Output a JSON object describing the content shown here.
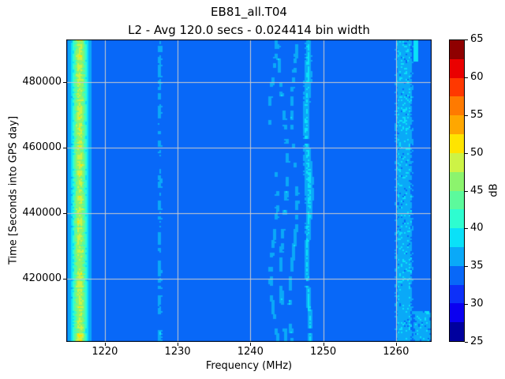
{
  "figure": {
    "title": "EB81_all.T04",
    "subtitle": "L2 - Avg 120.0 secs - 0.024414 bin width"
  },
  "axes": {
    "xlabel": "Frequency (MHz)",
    "ylabel": "Time [Seconds into GPS day]",
    "xticks": [
      1220,
      1230,
      1240,
      1250,
      1260
    ],
    "yticks": [
      420000,
      440000,
      460000,
      480000
    ]
  },
  "colorbar": {
    "label": "dB",
    "ticks": [
      25,
      30,
      35,
      40,
      45,
      50,
      55,
      60,
      65
    ],
    "min": 25,
    "max": 65,
    "n_bands": 16,
    "colors": [
      "#00009e",
      "#0b00f0",
      "#0d30f8",
      "#0868f8",
      "#0aa9f8",
      "#0ae1f8",
      "#2efdd0",
      "#5cfa9c",
      "#8cf46d",
      "#cdf346",
      "#ffe400",
      "#ffa700",
      "#ff7a00",
      "#ff3800",
      "#ea0000",
      "#8f0000"
    ]
  },
  "chart_data": {
    "type": "heatmap",
    "title": "EB81_all.T04",
    "subtitle": "L2 - Avg 120.0 secs - 0.024414 bin width",
    "xlabel": "Frequency (MHz)",
    "ylabel": "Time [Seconds into GPS day]",
    "value_label": "dB",
    "xlim": [
      1214.7,
      1264.9
    ],
    "ylim": [
      400700,
      493000
    ],
    "zlim": [
      25,
      65
    ],
    "z_bin_db": 2.5,
    "grid": true,
    "background_level_db": 33.5,
    "features": [
      {
        "kind": "broadband",
        "name": "strong-broadband-interference",
        "f_center": 1216.55,
        "sigma": 1.0,
        "amp": 14,
        "peak_db": 48,
        "note": "full-height noisy stripe, cyan with green/yellow-green core, hottest at bottom"
      },
      {
        "kind": "narrow",
        "name": "narrowband-1227",
        "f_center": 1227.55,
        "sigma": 0.24,
        "peak_db": 38,
        "note": "intermittent thin stripe, brighter near bottom"
      },
      {
        "kind": "wavy",
        "name": "wavy-streak-1248",
        "f_center": 1247.9,
        "halfwidth": 0.36,
        "amp": 3.4,
        "wobble": 0.18,
        "cycles": 2.2,
        "phase": 0.8,
        "drift": 0.25,
        "duty": 0.97,
        "widen": [
          0.6,
          0.14,
          0.1,
          0.9,
          0.46,
          0.12
        ],
        "peak_db": 38.5
      },
      {
        "kind": "wavy",
        "name": "wavy-streak-1246",
        "f_center": 1246.0,
        "halfwidth": 0.28,
        "amp": 2.7,
        "wobble": 0.45,
        "cycles": 1.6,
        "phase": 2.4,
        "drift": -0.4,
        "duty": 0.6,
        "widen": null,
        "peak_db": 37
      },
      {
        "kind": "wavy",
        "name": "wavy-streak-1244p6",
        "f_center": 1244.6,
        "halfwidth": 0.3,
        "amp": 2.7,
        "wobble": 0.55,
        "cycles": 1.3,
        "phase": 4.6,
        "drift": 0.5,
        "duty": 0.55,
        "widen": null,
        "peak_db": 37
      },
      {
        "kind": "wavy",
        "name": "wavy-streak-1243",
        "f_center": 1243.2,
        "halfwidth": 0.28,
        "amp": 2.6,
        "wobble": 0.5,
        "cycles": 1.9,
        "phase": 1.6,
        "drift": 0.3,
        "duty": 0.45,
        "widen": null,
        "peak_db": 37
      },
      {
        "kind": "band",
        "name": "broad-noisy-band-1261",
        "f_start": 1259.9,
        "f_end": 1262.3,
        "mean_db": 36.5,
        "peak_db": 39,
        "note": "full-height speckled band with cyan flecks"
      },
      {
        "kind": "band",
        "name": "bottom-right-noise",
        "f_start": 1262.3,
        "f_end": 1264.9,
        "t_max": 410500,
        "mean_db": 36,
        "peak_db": 38,
        "note": "elevated noise near bottom right corner"
      },
      {
        "kind": "bar",
        "name": "solid-cyan-bar-1263",
        "f_start": 1262.45,
        "f_end": 1263.15,
        "t_start": 486200,
        "t_end": 492800,
        "db": 39,
        "note": "short solid cyan bar near top"
      }
    ]
  }
}
